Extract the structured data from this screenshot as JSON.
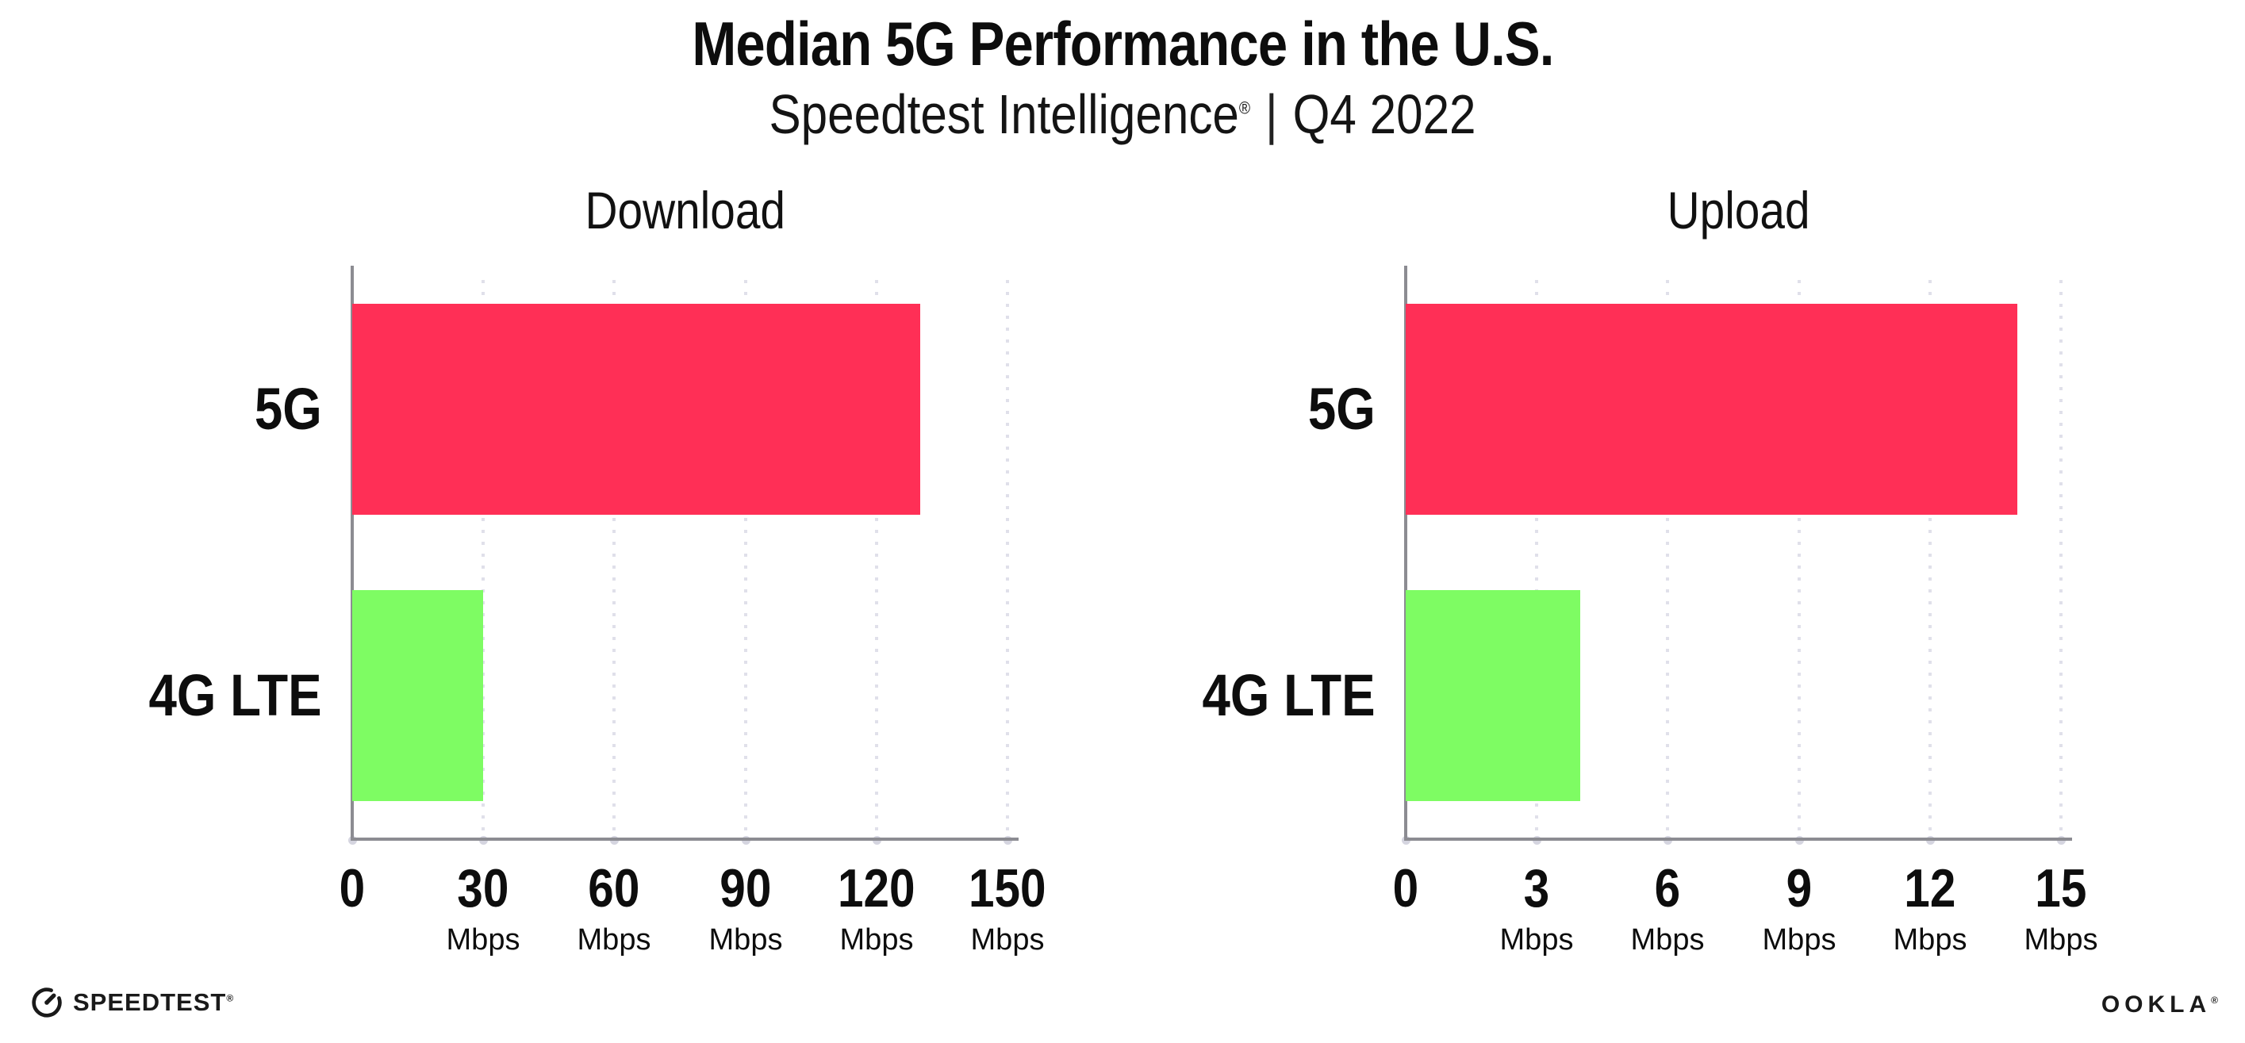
{
  "header": {
    "title": "Median 5G Performance in the U.S.",
    "subtitle": {
      "brand": "Speedtest Intelligence",
      "registered": "®",
      "divider": "|",
      "period": "Q4 2022"
    }
  },
  "chart_data": [
    {
      "type": "bar",
      "orientation": "horizontal",
      "title": "Download",
      "categories": [
        "5G",
        "4G LTE"
      ],
      "values": [
        130,
        30
      ],
      "unit": "Mbps",
      "xlim": [
        0,
        150
      ],
      "xticks": [
        0,
        30,
        60,
        90,
        120,
        150
      ],
      "tick_unit_label": "Mbps",
      "bar_colors": [
        "#ff2f56",
        "#7efc63"
      ],
      "grid": "dotted-vertical",
      "legend": "none"
    },
    {
      "type": "bar",
      "orientation": "horizontal",
      "title": "Upload",
      "categories": [
        "5G",
        "4G LTE"
      ],
      "values": [
        14,
        4
      ],
      "unit": "Mbps",
      "xlim": [
        0,
        15
      ],
      "xticks": [
        0,
        3,
        6,
        9,
        12,
        15
      ],
      "tick_unit_label": "Mbps",
      "bar_colors": [
        "#ff2f56",
        "#7efc63"
      ],
      "grid": "dotted-vertical",
      "legend": "none"
    }
  ],
  "footer": {
    "speedtest_logo_text": "SPEEDTEST",
    "speedtest_mark": "®",
    "ookla_logo_text": "OOKLA",
    "ookla_mark": "®"
  },
  "colors": {
    "bar_5g": "#ff2f56",
    "bar_4g_lte": "#7efc63",
    "axis": "#8c8c92",
    "gridline": "#e0e0ea",
    "text": "#0d0d0d"
  }
}
